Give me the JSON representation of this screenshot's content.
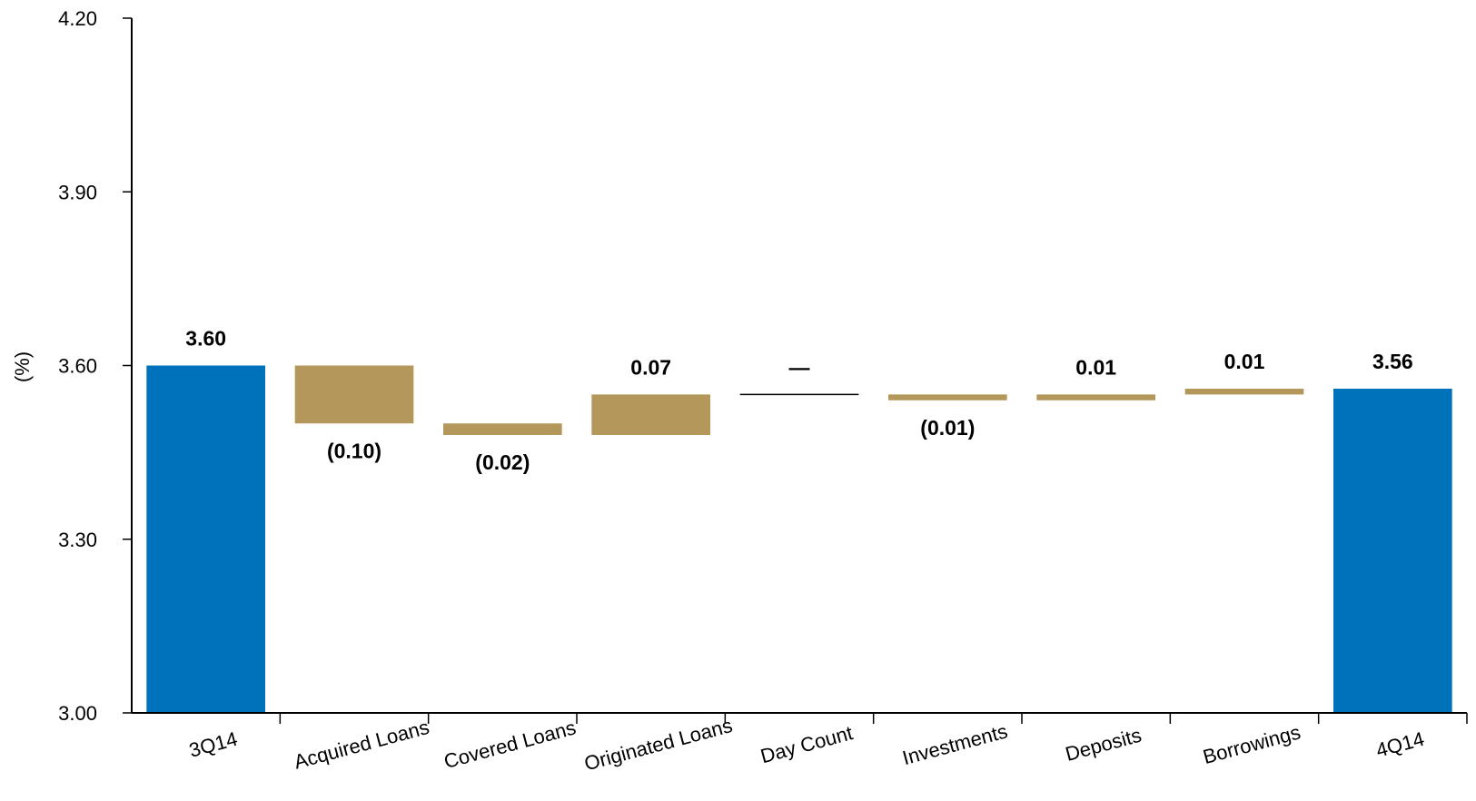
{
  "chart_data": {
    "type": "bar",
    "subtype": "waterfall",
    "title": "",
    "xlabel": "",
    "ylabel": "(%)",
    "ylim": [
      3.0,
      4.2
    ],
    "y_ticks": [
      3.0,
      3.3,
      3.6,
      3.9,
      4.2
    ],
    "y_tick_labels": [
      "3.00",
      "3.30",
      "3.60",
      "3.90",
      "4.20"
    ],
    "grid": false,
    "legend": "none",
    "colors": {
      "total": "#0072BC",
      "change": "#B4975A",
      "zero_line": "#000000"
    },
    "categories": [
      "3Q14",
      "Acquired Loans",
      "Covered Loans",
      "Originated Loans",
      "Day Count",
      "Investments",
      "Deposits",
      "Borrowings",
      "4Q14"
    ],
    "bars": [
      {
        "category": "3Q14",
        "kind": "total",
        "start": 3.0,
        "end": 3.6,
        "label": "3.60",
        "label_pos": "above"
      },
      {
        "category": "Acquired Loans",
        "kind": "change",
        "start": 3.6,
        "end": 3.5,
        "label": "(0.10)",
        "label_pos": "below"
      },
      {
        "category": "Covered Loans",
        "kind": "change",
        "start": 3.5,
        "end": 3.48,
        "label": "(0.02)",
        "label_pos": "below"
      },
      {
        "category": "Originated Loans",
        "kind": "change",
        "start": 3.48,
        "end": 3.55,
        "label": "0.07",
        "label_pos": "above"
      },
      {
        "category": "Day Count",
        "kind": "zero",
        "start": 3.55,
        "end": 3.55,
        "label": "—",
        "label_pos": "above"
      },
      {
        "category": "Investments",
        "kind": "change",
        "start": 3.55,
        "end": 3.54,
        "label": "(0.01)",
        "label_pos": "below"
      },
      {
        "category": "Deposits",
        "kind": "change",
        "start": 3.54,
        "end": 3.55,
        "label": "0.01",
        "label_pos": "above"
      },
      {
        "category": "Borrowings",
        "kind": "change",
        "start": 3.55,
        "end": 3.56,
        "label": "0.01",
        "label_pos": "above"
      },
      {
        "category": "4Q14",
        "kind": "total",
        "start": 3.0,
        "end": 3.56,
        "label": "3.56",
        "label_pos": "above"
      }
    ]
  }
}
